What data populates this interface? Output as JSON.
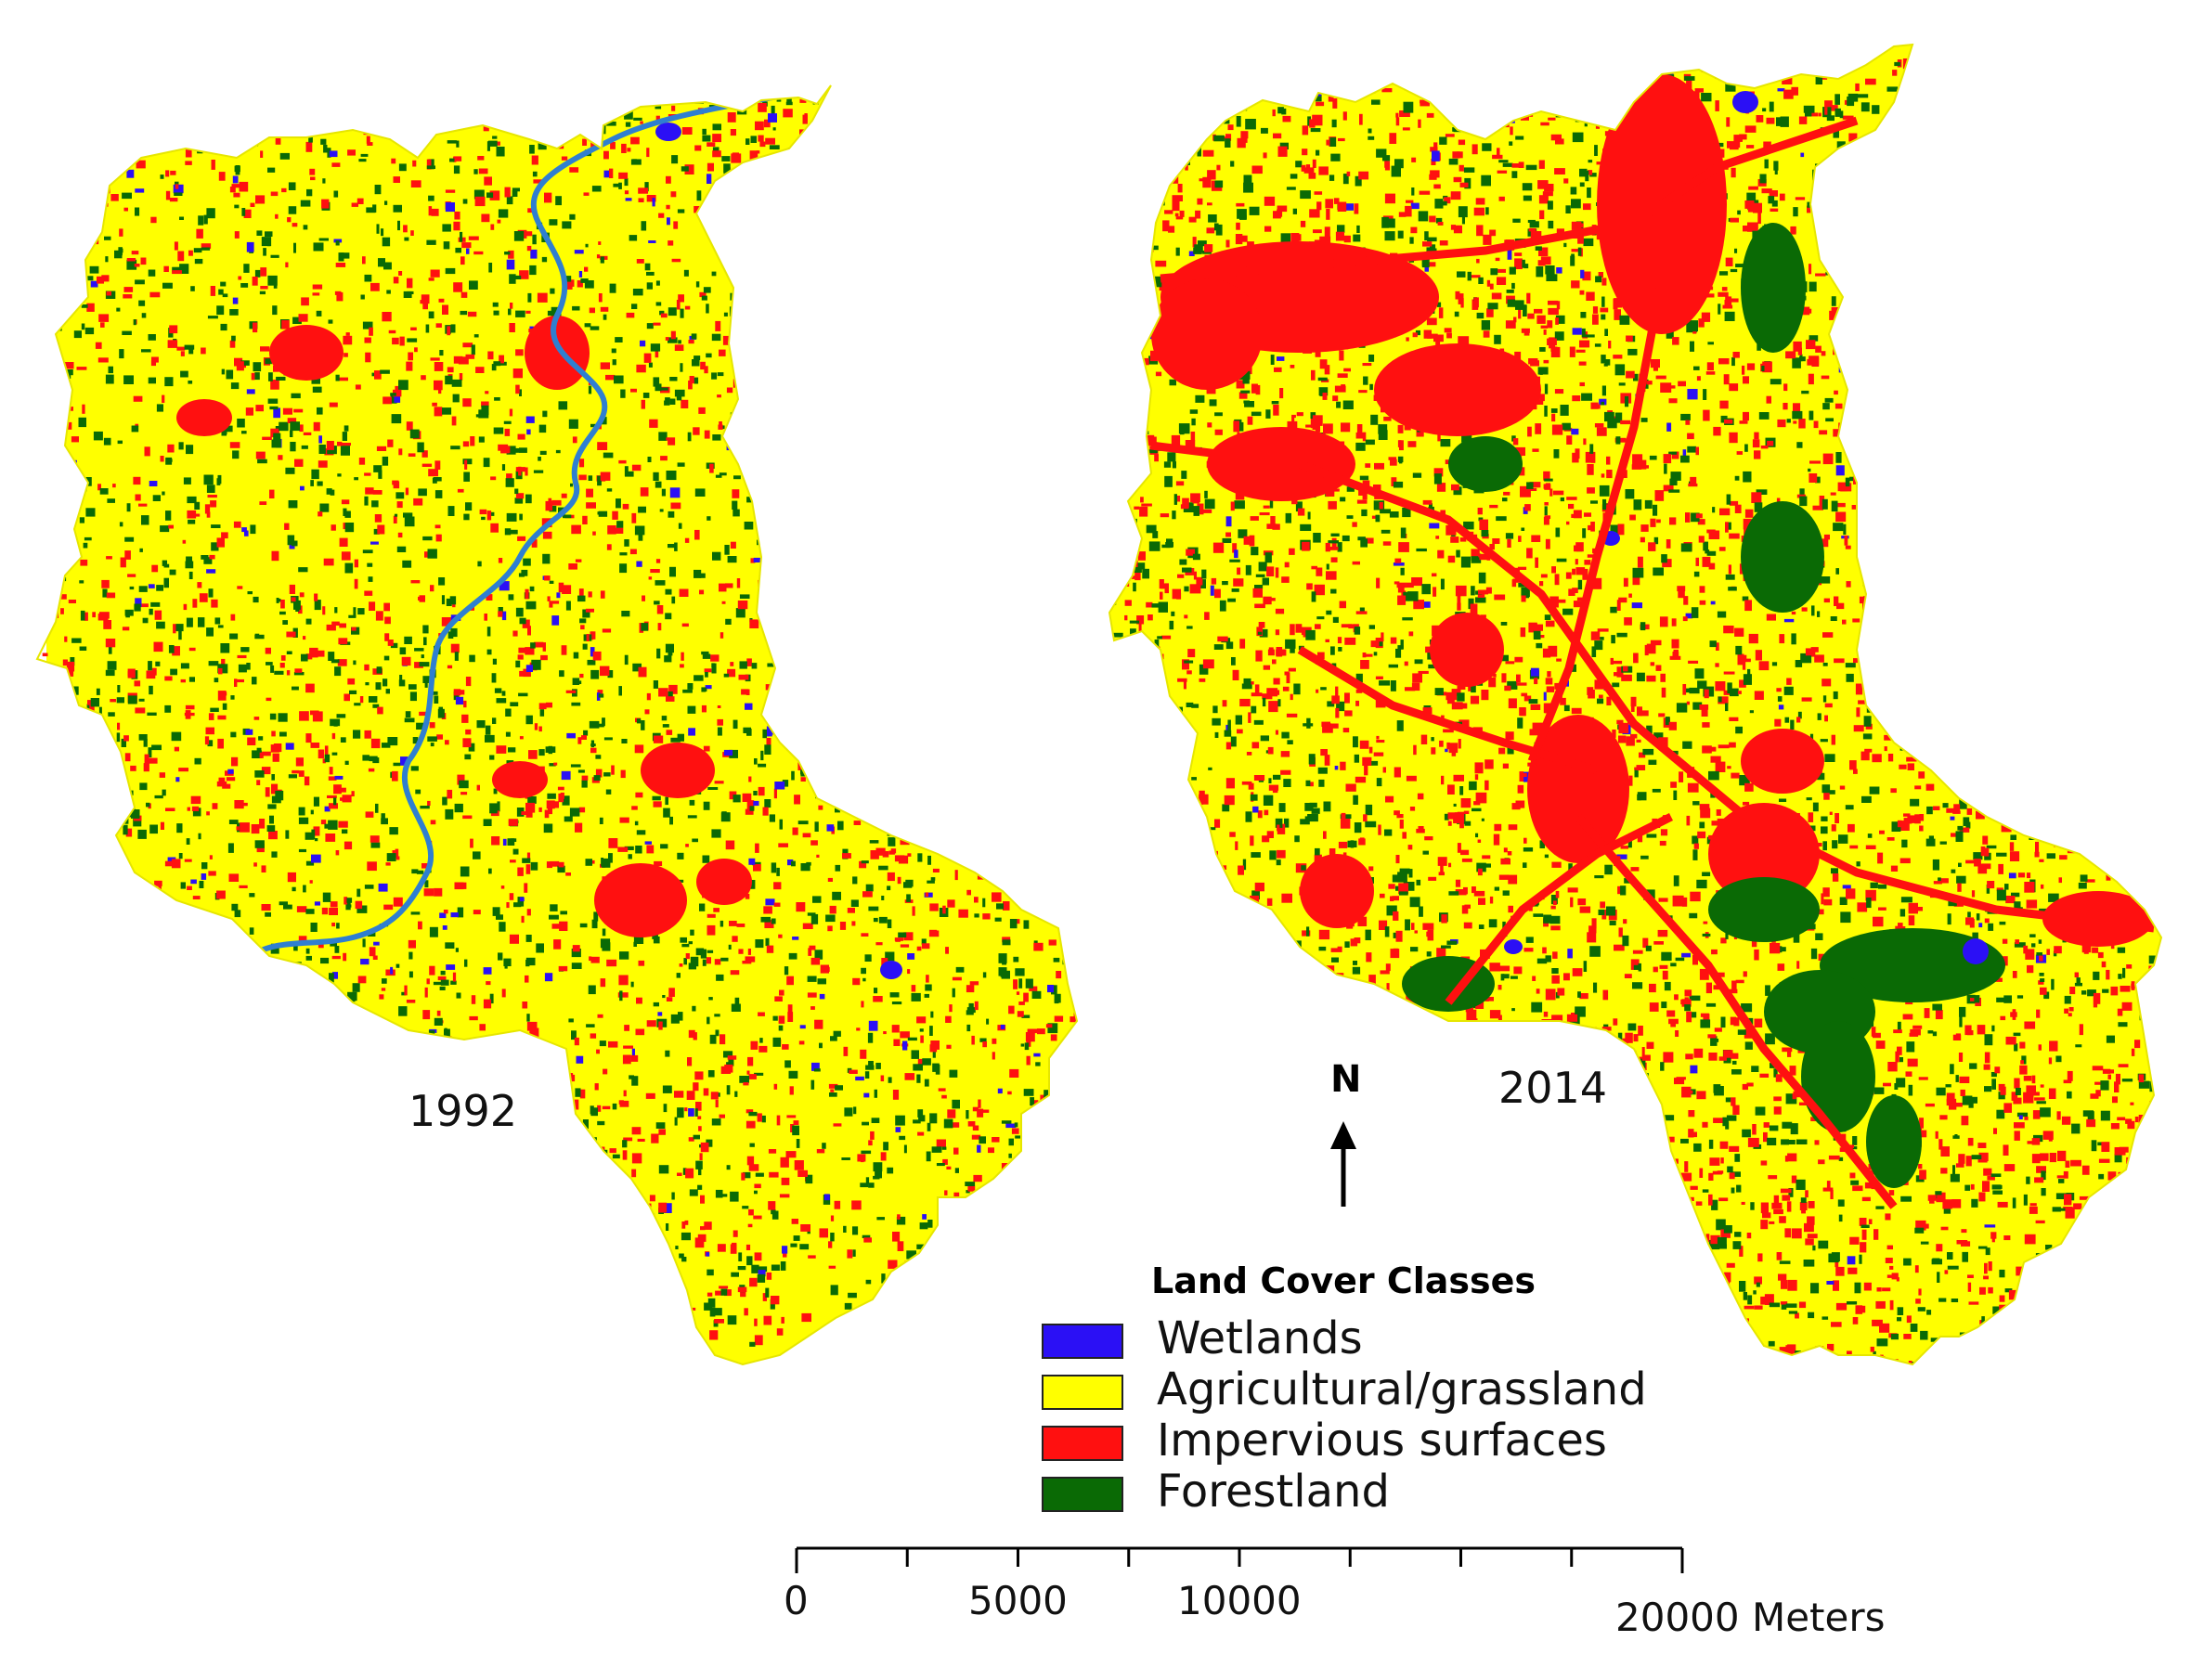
{
  "maps": {
    "left_year": "1992",
    "right_year": "2014"
  },
  "north_arrow": {
    "label": "N"
  },
  "legend": {
    "title": "Land Cover Classes",
    "items": [
      {
        "label": "Wetlands",
        "color": "#2b10f5"
      },
      {
        "label": "Agricultural/grassland",
        "color": "#ffff00"
      },
      {
        "label": "Impervious surfaces",
        "color": "#ff1010"
      },
      {
        "label": "Forestland",
        "color": "#0a6a05"
      }
    ]
  },
  "scale_bar": {
    "labels": [
      "0",
      "5000",
      "10000",
      "20000"
    ],
    "unit": "Meters"
  },
  "colors": {
    "wetland": "#2b10f5",
    "agri": "#ffff00",
    "impervious": "#ff1010",
    "forest": "#0a6a05",
    "river": "#2f7fd0"
  }
}
